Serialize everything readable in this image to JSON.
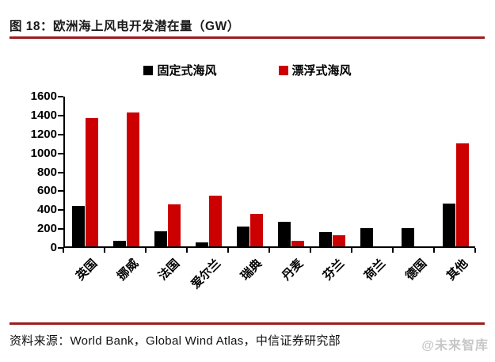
{
  "title": "图 18：欧洲海上风电开发潜在量（GW）",
  "source": "资料来源：World Bank，Global Wind Atlas，中信证券研究部",
  "watermark": "@未来智库",
  "colors": {
    "fixed_bar": "#000000",
    "floating_bar": "#cc0000",
    "rule": "#9b1c1f",
    "axis": "#000000",
    "watermark": "#c7c7c7"
  },
  "chart_data": {
    "type": "bar",
    "title": "欧洲海上风电开发潜在量（GW）",
    "categories": [
      "英国",
      "挪威",
      "法国",
      "爱尔兰",
      "瑞典",
      "丹麦",
      "芬兰",
      "荷兰",
      "德国",
      "其他"
    ],
    "series": [
      {
        "name": "固定式海风",
        "color": "#000000",
        "values": [
          430,
          55,
          160,
          40,
          210,
          260,
          155,
          195,
          190,
          450
        ]
      },
      {
        "name": "漂浮式海风",
        "color": "#cc0000",
        "values": [
          1360,
          1420,
          440,
          540,
          340,
          60,
          115,
          0,
          0,
          1090
        ]
      }
    ],
    "xlabel": "",
    "ylabel": "",
    "ylim": [
      0,
      1600
    ],
    "ytick_step": 200,
    "yticks": [
      0,
      200,
      400,
      600,
      800,
      1000,
      1200,
      1400,
      1600
    ],
    "grid": false,
    "legend_position": "top-center"
  }
}
